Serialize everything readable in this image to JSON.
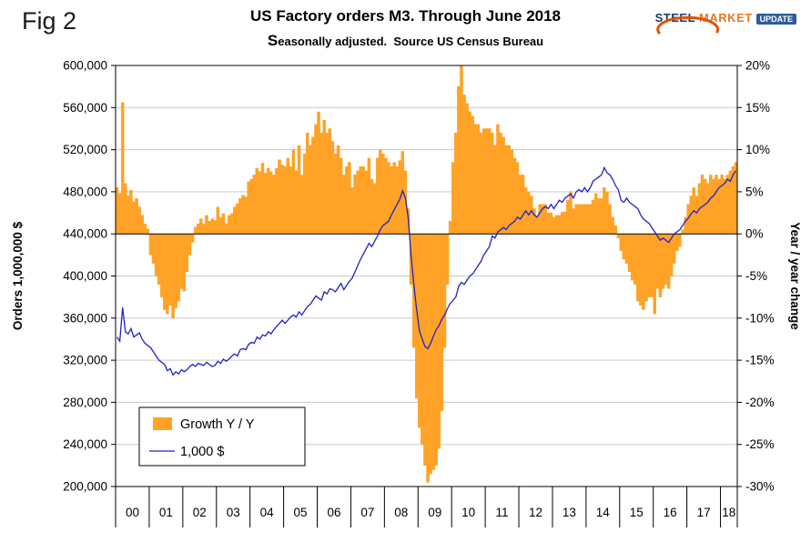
{
  "figure_label": "Fig 2",
  "logo": {
    "steel": "STEEL",
    "market": "MARKET",
    "update": "UPDATE",
    "swoosh_color": "#e05206"
  },
  "colors": {
    "bar": "#FFA226",
    "line": "#2020CC",
    "grid": "#C9C9C9",
    "axis": "#000000",
    "background": "#FFFFFF"
  },
  "chart_data": {
    "type": "bar+line combo",
    "title": "US Factory orders M3. Through June 2018",
    "subtitle": "Seasonally adjusted.  Source US Census Bureau",
    "grid": true,
    "x_tick_labels": [
      "00",
      "01",
      "02",
      "03",
      "04",
      "05",
      "06",
      "07",
      "08",
      "09",
      "10",
      "11",
      "12",
      "13",
      "14",
      "15",
      "16",
      "17",
      "18"
    ],
    "months_per_year": [
      12,
      12,
      12,
      12,
      12,
      12,
      12,
      12,
      12,
      12,
      12,
      12,
      12,
      12,
      12,
      12,
      12,
      12,
      6
    ],
    "left_axis": {
      "label": "Orders 1,000,000 $",
      "min": 200000,
      "max": 600000,
      "step": 40000,
      "tick_labels": [
        "600,000",
        "560,000",
        "520,000",
        "480,000",
        "440,000",
        "400,000",
        "360,000",
        "320,000",
        "280,000",
        "240,000",
        "200,000"
      ]
    },
    "right_axis": {
      "label": "Year / year change",
      "min": -30,
      "max": 20,
      "step": 5,
      "tick_labels": [
        "20%",
        "15%",
        "10%",
        "5%",
        "0%",
        "-5%",
        "-10%",
        "-15%",
        "-20%",
        "-25%",
        "-30%"
      ]
    },
    "baseline_left_value": 440000,
    "legend": {
      "position": "inside-lower-left",
      "entries": [
        "Growth Y / Y",
        "1,000 $"
      ]
    },
    "series": [
      {
        "name": "Growth Y / Y",
        "type": "bar",
        "axis": "right",
        "unit": "%",
        "color": "#FFA226",
        "values": [
          5.5,
          4.8,
          15.6,
          6.0,
          4.5,
          5.2,
          3.8,
          4.2,
          3.2,
          2.2,
          1.2,
          0.6,
          -2.5,
          -3.5,
          -5.0,
          -6.0,
          -7.5,
          -9.0,
          -9.5,
          -8.5,
          -10.0,
          -8.8,
          -8.0,
          -6.5,
          -6.8,
          -4.5,
          -2.5,
          -1.0,
          0.8,
          1.2,
          1.8,
          1.2,
          2.2,
          1.5,
          1.8,
          1.6,
          3.2,
          2.0,
          2.4,
          1.2,
          2.2,
          2.4,
          3.2,
          3.6,
          4.2,
          4.6,
          4.4,
          6.2,
          6.5,
          7.0,
          7.8,
          7.4,
          8.4,
          7.2,
          7.8,
          7.4,
          7.0,
          7.8,
          8.8,
          8.2,
          8.0,
          9.0,
          8.0,
          10.0,
          7.5,
          10.5,
          7.0,
          9.5,
          12.0,
          10.5,
          11.5,
          13.0,
          14.5,
          12.0,
          13.5,
          12.0,
          12.5,
          11.0,
          9.5,
          10.5,
          9.0,
          7.0,
          8.0,
          8.5,
          5.5,
          7.0,
          7.5,
          8.0,
          8.0,
          7.5,
          9.0,
          6.5,
          6.0,
          9.0,
          10.0,
          9.5,
          9.0,
          8.5,
          8.0,
          8.5,
          8.0,
          8.7,
          9.8,
          7.5,
          3.0,
          -6.0,
          -13.5,
          -19.5,
          -23.0,
          -25.0,
          -27.5,
          -29.5,
          -28.5,
          -28.0,
          -27.5,
          -25.5,
          -21.0,
          -13.5,
          -6.0,
          1.5,
          8.5,
          12.0,
          17.5,
          20.0,
          16.5,
          15.5,
          14.5,
          14.0,
          13.0,
          13.0,
          12.0,
          12.5,
          12.5,
          12.5,
          12.0,
          10.5,
          13.0,
          12.0,
          11.5,
          10.5,
          10.5,
          10.0,
          9.0,
          8.5,
          7.0,
          7.0,
          5.5,
          5.0,
          4.5,
          3.0,
          2.0,
          3.5,
          3.5,
          3.5,
          2.5,
          2.5,
          2.0,
          2.2,
          2.2,
          2.6,
          2.6,
          4.0,
          5.0,
          3.0,
          3.5,
          3.5,
          3.5,
          3.5,
          3.5,
          3.5,
          4.0,
          4.8,
          4.2,
          4.2,
          5.5,
          5.0,
          3.5,
          2.0,
          1.0,
          -0.5,
          -2.0,
          -3.0,
          -3.5,
          -4.5,
          -5.5,
          -6.0,
          -8.0,
          -8.5,
          -9.0,
          -8.0,
          -7.5,
          -7.5,
          -9.5,
          -6.5,
          -7.5,
          -6.5,
          -6.0,
          -6.5,
          -5.0,
          -3.5,
          -2.0,
          -1.5,
          0.5,
          2.0,
          3.5,
          4.5,
          5.5,
          4.5,
          6.0,
          7.0,
          6.5,
          6.0,
          7.0,
          6.5,
          7.0,
          6.5,
          7.0,
          6.5,
          7.0,
          7.5,
          8.0,
          8.5
        ]
      },
      {
        "name": "1,000 $",
        "type": "line",
        "axis": "left",
        "unit": "1,000,000 $",
        "color": "#2020CC",
        "values": [
          342000,
          338000,
          370000,
          347000,
          345000,
          350000,
          342000,
          344000,
          346000,
          340000,
          336000,
          334000,
          332000,
          328000,
          324000,
          320000,
          318000,
          316000,
          310000,
          312000,
          306000,
          309000,
          307000,
          311000,
          309000,
          311000,
          314000,
          316000,
          314000,
          317000,
          316000,
          315000,
          318000,
          316000,
          314000,
          315000,
          319000,
          317000,
          321000,
          319000,
          321000,
          324000,
          326000,
          324000,
          330000,
          331000,
          330000,
          335000,
          337000,
          336000,
          342000,
          340000,
          344000,
          343000,
          347000,
          345000,
          349000,
          352000,
          355000,
          358000,
          355000,
          358000,
          361000,
          363000,
          361000,
          366000,
          363000,
          367000,
          371000,
          373000,
          377000,
          381000,
          379000,
          377000,
          385000,
          383000,
          388000,
          387000,
          385000,
          389000,
          393000,
          387000,
          391000,
          395000,
          398000,
          404000,
          410000,
          416000,
          421000,
          426000,
          431000,
          428000,
          433000,
          438000,
          444000,
          448000,
          450000,
          452000,
          458000,
          463000,
          468000,
          473000,
          481000,
          474000,
          455000,
          420000,
          392000,
          368000,
          348000,
          340000,
          333000,
          331000,
          336000,
          343000,
          349000,
          353000,
          359000,
          363000,
          369000,
          374000,
          377000,
          380000,
          390000,
          394000,
          392000,
          396000,
          400000,
          402000,
          406000,
          410000,
          414000,
          420000,
          424000,
          428000,
          438000,
          436000,
          442000,
          444000,
          446000,
          444000,
          448000,
          450000,
          452000,
          456000,
          454000,
          458000,
          462000,
          458000,
          462000,
          458000,
          456000,
          460000,
          464000,
          466000,
          464000,
          468000,
          464000,
          468000,
          472000,
          470000,
          474000,
          476000,
          478000,
          474000,
          480000,
          482000,
          480000,
          484000,
          480000,
          484000,
          490000,
          492000,
          494000,
          496000,
          503000,
          498000,
          496000,
          492000,
          486000,
          482000,
          472000,
          470000,
          474000,
          470000,
          468000,
          466000,
          464000,
          458000,
          454000,
          452000,
          450000,
          446000,
          442000,
          438000,
          434000,
          436000,
          434000,
          432000,
          436000,
          440000,
          442000,
          444000,
          448000,
          452000,
          455000,
          459000,
          462000,
          460000,
          464000,
          466000,
          468000,
          470000,
          474000,
          476000,
          480000,
          484000,
          486000,
          488000,
          492000,
          490000,
          496000,
          500000
        ]
      }
    ]
  }
}
